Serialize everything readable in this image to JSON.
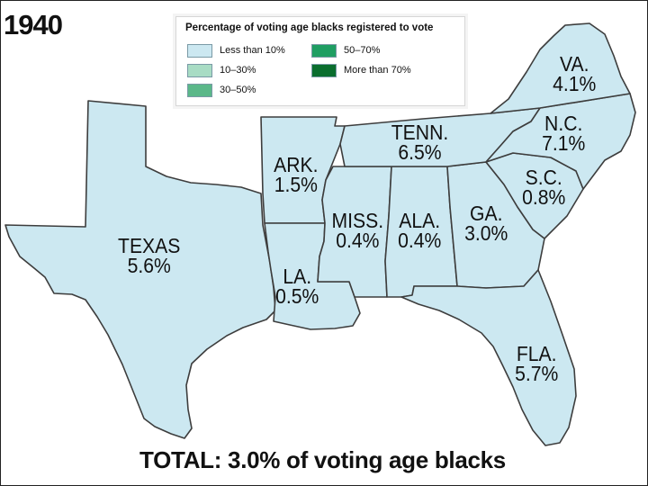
{
  "year": "1940",
  "legend": {
    "title": "Percentage of voting age blacks registered to vote",
    "items": [
      {
        "label": "Less than 10%",
        "color": "#cce8f1"
      },
      {
        "label": "10–30%",
        "color": "#a8dcc4"
      },
      {
        "label": "30–50%",
        "color": "#5bb889"
      },
      {
        "label": "50–70%",
        "color": "#1f9e62"
      },
      {
        "label": "More than 70%",
        "color": "#0a6e2e"
      }
    ]
  },
  "states": [
    {
      "id": "texas",
      "name": "TEXAS",
      "value": "5.6%"
    },
    {
      "id": "arkansas",
      "name": "ARK.",
      "value": "1.5%"
    },
    {
      "id": "louisiana",
      "name": "LA.",
      "value": "0.5%"
    },
    {
      "id": "mississippi",
      "name": "MISS.",
      "value": "0.4%"
    },
    {
      "id": "alabama",
      "name": "ALA.",
      "value": "0.4%"
    },
    {
      "id": "georgia",
      "name": "GA.",
      "value": "3.0%"
    },
    {
      "id": "florida",
      "name": "FLA.",
      "value": "5.7%"
    },
    {
      "id": "tennessee",
      "name": "TENN.",
      "value": "6.5%"
    },
    {
      "id": "south-carolina",
      "name": "S.C.",
      "value": "0.8%"
    },
    {
      "id": "north-carolina",
      "name": "N.C.",
      "value": "7.1%"
    },
    {
      "id": "virginia",
      "name": "VA.",
      "value": "4.1%"
    }
  ],
  "map_fill": "#cce8f1",
  "total": "TOTAL: 3.0% of voting age blacks"
}
